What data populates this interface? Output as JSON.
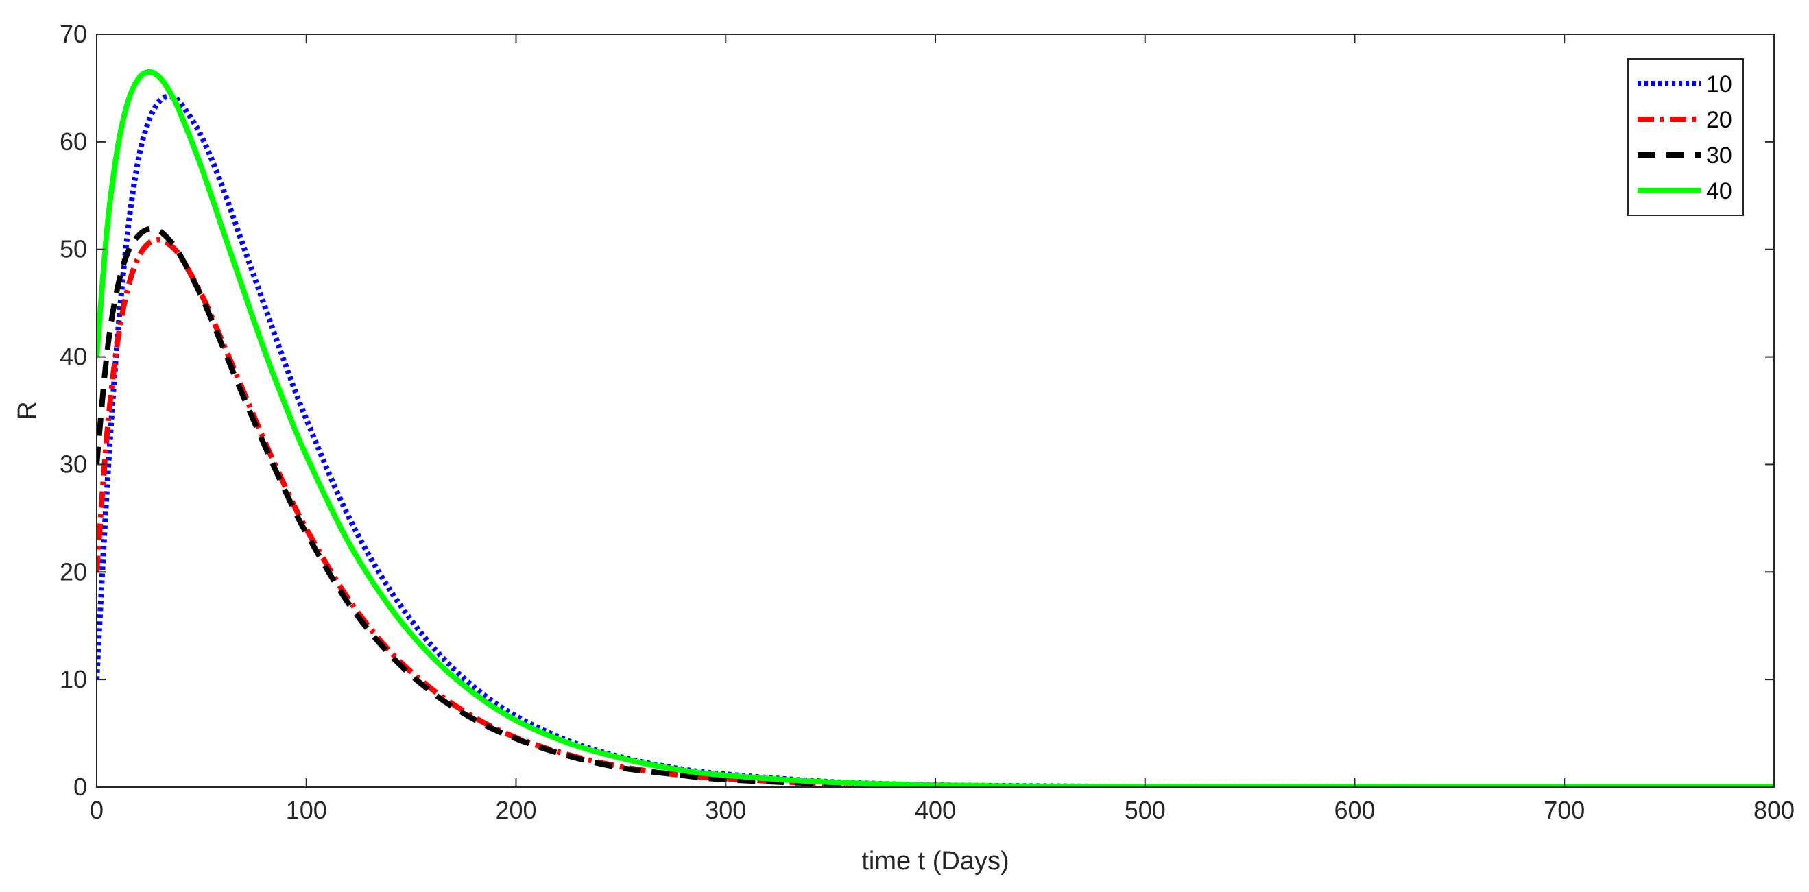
{
  "chart_data": {
    "type": "line",
    "title": "",
    "xlabel": "time t (Days)",
    "ylabel": "R",
    "xlim": [
      0,
      800
    ],
    "ylim": [
      0,
      70
    ],
    "xticks": [
      "0",
      "100",
      "200",
      "300",
      "400",
      "500",
      "600",
      "700",
      "800"
    ],
    "yticks": [
      "0",
      "10",
      "20",
      "30",
      "40",
      "50",
      "60",
      "70"
    ],
    "grid": false,
    "legend_position": "top-right",
    "series": [
      {
        "name": "10",
        "color": "#0000ff",
        "style": "dotted",
        "x": [
          0,
          5,
          10,
          15,
          20,
          25,
          30,
          35,
          40,
          50,
          60,
          70,
          80,
          90,
          100,
          120,
          140,
          160,
          180,
          200,
          225,
          250,
          275,
          300,
          350,
          400,
          450,
          500,
          600,
          700,
          800
        ],
        "y": [
          10,
          28,
          42,
          52,
          58.5,
          62,
          63.8,
          64.2,
          63.6,
          60.5,
          55.8,
          50.3,
          44.8,
          39.3,
          34.2,
          25.2,
          18.3,
          13.1,
          9.3,
          6.6,
          4.3,
          2.8,
          1.8,
          1.2,
          0.5,
          0.2,
          0.1,
          0.05,
          0.01,
          0,
          0
        ]
      },
      {
        "name": "20",
        "color": "#ff0000",
        "style": "dashdot",
        "x": [
          0,
          5,
          10,
          15,
          20,
          25,
          30,
          35,
          40,
          50,
          60,
          70,
          80,
          90,
          100,
          120,
          140,
          160,
          180,
          200,
          225,
          250,
          275,
          300,
          350,
          400,
          450,
          500,
          600,
          700,
          800
        ],
        "y": [
          20,
          33,
          41.5,
          46.5,
          49.3,
          50.6,
          50.9,
          50.4,
          49.3,
          45.8,
          41.4,
          36.8,
          32.2,
          27.9,
          24,
          17.5,
          12.6,
          9.1,
          6.5,
          4.6,
          3,
          1.9,
          1.2,
          0.8,
          0.3,
          0.1,
          0.05,
          0.02,
          0,
          0,
          0
        ]
      },
      {
        "name": "30",
        "color": "#000000",
        "style": "dashed",
        "x": [
          0,
          5,
          10,
          15,
          20,
          25,
          30,
          35,
          40,
          50,
          60,
          70,
          80,
          90,
          100,
          120,
          140,
          160,
          180,
          200,
          225,
          250,
          275,
          300,
          350,
          400,
          450,
          500,
          600,
          700,
          800
        ],
        "y": [
          30,
          40.5,
          46.5,
          49.8,
          51.3,
          51.9,
          51.7,
          50.8,
          49.4,
          45.6,
          41,
          36.3,
          31.8,
          27.5,
          23.6,
          17.1,
          12.3,
          8.8,
          6.3,
          4.5,
          2.9,
          1.8,
          1.2,
          0.7,
          0.3,
          0.1,
          0.05,
          0.02,
          0,
          0,
          0
        ]
      },
      {
        "name": "40",
        "color": "#00ff00",
        "style": "solid",
        "x": [
          0,
          5,
          10,
          15,
          20,
          25,
          30,
          35,
          40,
          50,
          60,
          70,
          80,
          90,
          100,
          120,
          140,
          160,
          180,
          200,
          225,
          250,
          275,
          300,
          350,
          400,
          450,
          500,
          600,
          700,
          800
        ],
        "y": [
          40,
          52,
          59.5,
          63.8,
          65.9,
          66.5,
          66,
          64.6,
          62.6,
          57.6,
          51.9,
          46.2,
          40.6,
          35.5,
          30.8,
          22.8,
          16.7,
          12.1,
          8.7,
          6.2,
          4.1,
          2.7,
          1.7,
          1.1,
          0.45,
          0.18,
          0.07,
          0.03,
          0,
          0,
          0
        ]
      }
    ]
  }
}
